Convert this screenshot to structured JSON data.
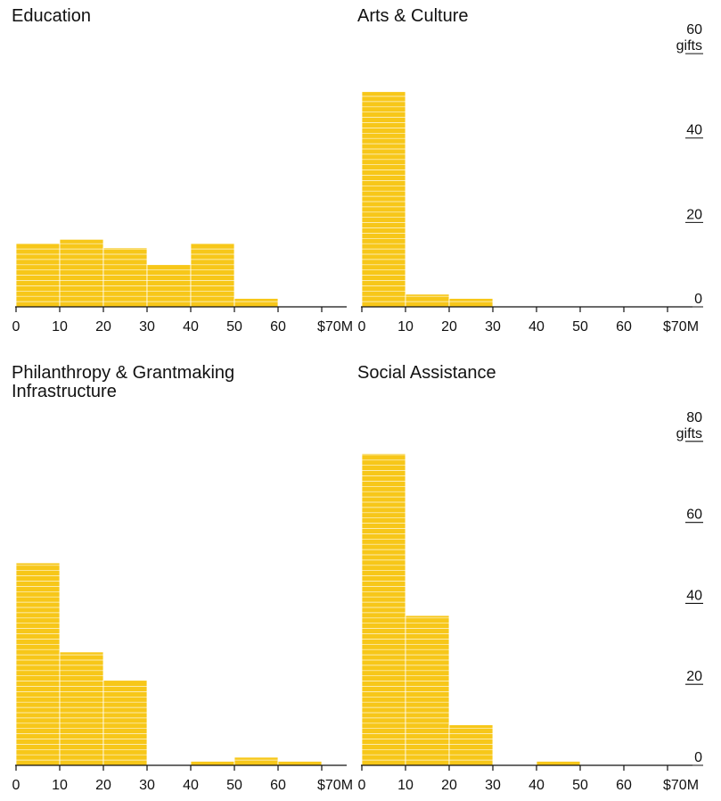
{
  "colors": {
    "bar": "#f7c719",
    "bar_stripe": "#ffffff",
    "axis": "#111111",
    "text": "#111111"
  },
  "chart_data": [
    {
      "type": "bar",
      "title_lines": [
        "Education"
      ],
      "bins": [
        [
          0,
          10
        ],
        [
          10,
          20
        ],
        [
          20,
          30
        ],
        [
          30,
          40
        ],
        [
          40,
          50
        ],
        [
          50,
          60
        ],
        [
          60,
          70
        ]
      ],
      "values": [
        15,
        16,
        14,
        10,
        15,
        2,
        0
      ],
      "x_tick_labels": [
        "0",
        "10",
        "20",
        "30",
        "40",
        "50",
        "60",
        "$70M"
      ],
      "xlim": [
        0,
        70
      ],
      "ylim": [
        0,
        67
      ],
      "y_ticks": [],
      "y_unit": "",
      "grid": false
    },
    {
      "type": "bar",
      "title_lines": [
        "Arts & Culture"
      ],
      "bins": [
        [
          0,
          10
        ],
        [
          10,
          20
        ],
        [
          20,
          30
        ],
        [
          30,
          40
        ],
        [
          40,
          50
        ],
        [
          50,
          60
        ],
        [
          60,
          70
        ]
      ],
      "values": [
        51,
        3,
        2,
        0,
        0,
        0,
        0
      ],
      "x_tick_labels": [
        "0",
        "10",
        "20",
        "30",
        "40",
        "50",
        "60",
        "$70M"
      ],
      "xlim": [
        0,
        70
      ],
      "ylim": [
        0,
        67
      ],
      "y_ticks": [
        {
          "value": 0,
          "label": "0"
        },
        {
          "value": 20,
          "label": "20"
        },
        {
          "value": 40,
          "label": "40"
        },
        {
          "value": 60,
          "label": "60"
        }
      ],
      "y_unit": "gifts",
      "grid": false
    },
    {
      "type": "bar",
      "title_lines": [
        "Philanthropy & Grantmaking",
        "Infrastructure"
      ],
      "bins": [
        [
          0,
          10
        ],
        [
          10,
          20
        ],
        [
          20,
          30
        ],
        [
          30,
          40
        ],
        [
          40,
          50
        ],
        [
          50,
          60
        ],
        [
          60,
          70
        ]
      ],
      "values": [
        50,
        28,
        21,
        0,
        1,
        2,
        1
      ],
      "x_tick_labels": [
        "0",
        "10",
        "20",
        "30",
        "40",
        "50",
        "60",
        "$70M"
      ],
      "xlim": [
        0,
        70
      ],
      "ylim": [
        0,
        89
      ],
      "y_ticks": [],
      "y_unit": "",
      "grid": false
    },
    {
      "type": "bar",
      "title_lines": [
        "Social Assistance"
      ],
      "bins": [
        [
          0,
          10
        ],
        [
          10,
          20
        ],
        [
          20,
          30
        ],
        [
          30,
          40
        ],
        [
          40,
          50
        ],
        [
          50,
          60
        ],
        [
          60,
          70
        ]
      ],
      "values": [
        77,
        37,
        10,
        0,
        1,
        0,
        0
      ],
      "x_tick_labels": [
        "0",
        "10",
        "20",
        "30",
        "40",
        "50",
        "60",
        "$70M"
      ],
      "xlim": [
        0,
        70
      ],
      "ylim": [
        0,
        89
      ],
      "y_ticks": [
        {
          "value": 0,
          "label": "0"
        },
        {
          "value": 20,
          "label": "20"
        },
        {
          "value": 40,
          "label": "40"
        },
        {
          "value": 60,
          "label": "60"
        },
        {
          "value": 80,
          "label": "80"
        }
      ],
      "y_unit": "gifts",
      "grid": false
    }
  ]
}
